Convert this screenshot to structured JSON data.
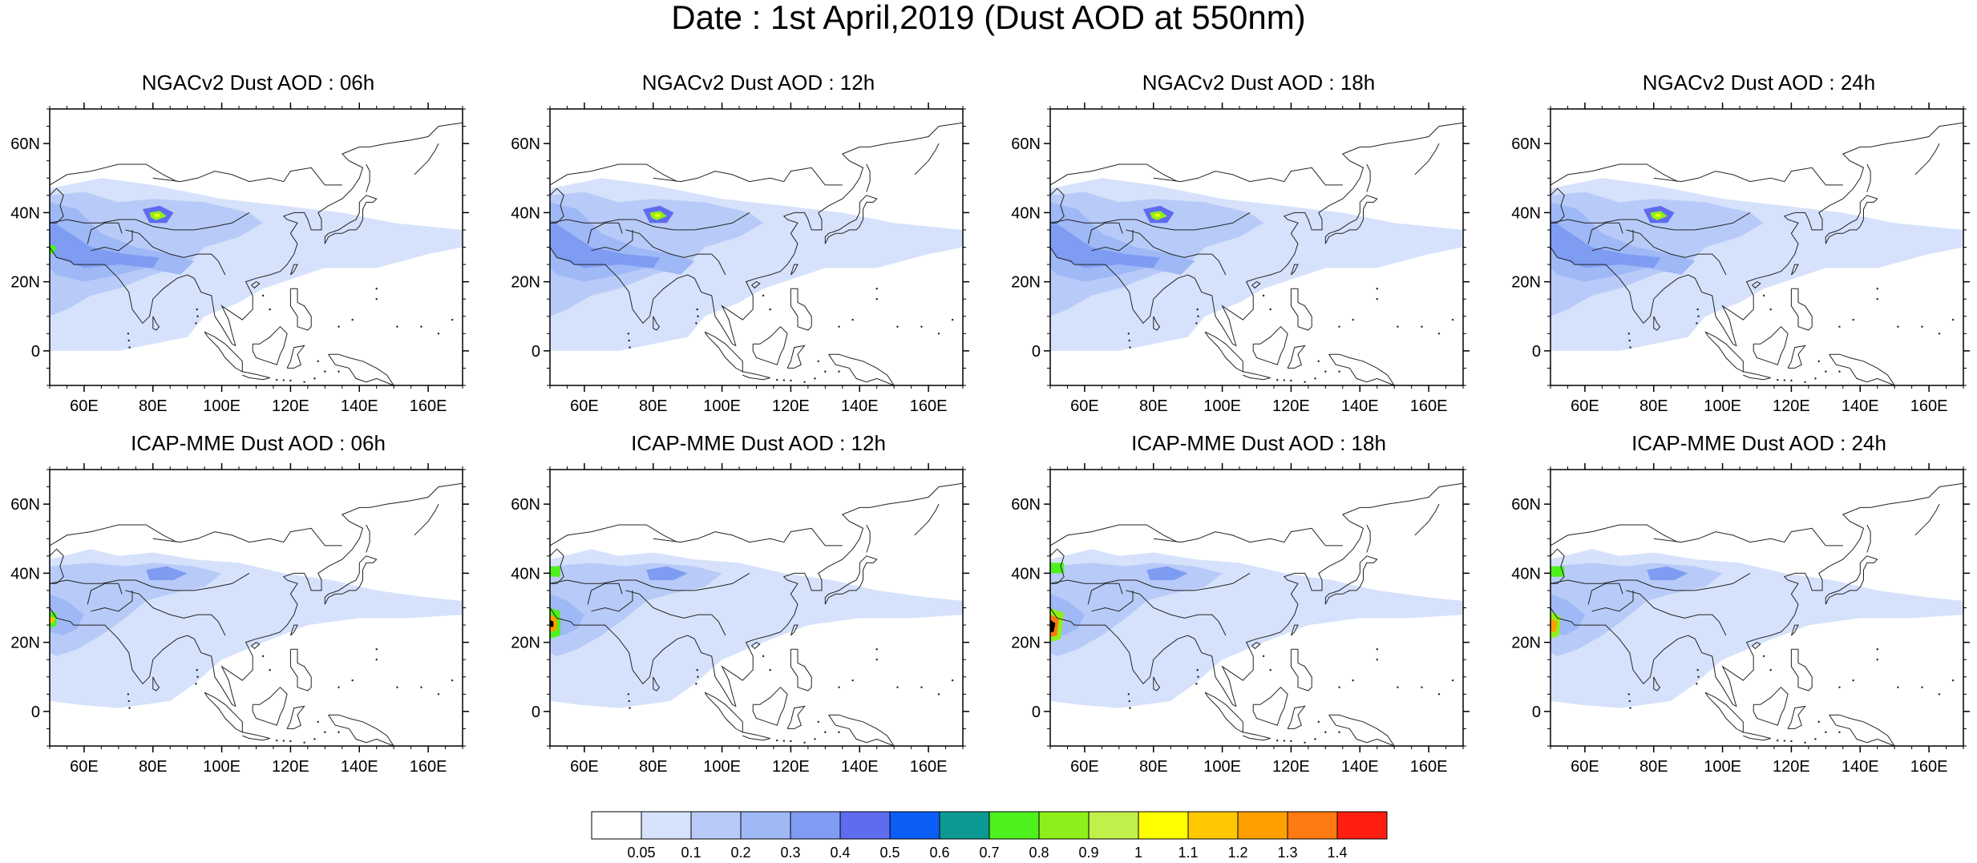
{
  "title": "Date : 1st April,2019 (Dust AOD at 550nm)",
  "axes": {
    "lat_ticks": [
      "60N",
      "40N",
      "20N",
      "0"
    ],
    "lon_ticks": [
      "60E",
      "80E",
      "100E",
      "120E",
      "140E",
      "160E"
    ]
  },
  "panels": [
    {
      "title": "NGACv2 Dust AOD : 06h",
      "model": "NGACv2",
      "hour": "06h"
    },
    {
      "title": "NGACv2 Dust AOD : 12h",
      "model": "NGACv2",
      "hour": "12h"
    },
    {
      "title": "NGACv2 Dust AOD : 18h",
      "model": "NGACv2",
      "hour": "18h"
    },
    {
      "title": "NGACv2 Dust AOD : 24h",
      "model": "NGACv2",
      "hour": "24h"
    },
    {
      "title": "ICAP-MME Dust AOD : 06h",
      "model": "ICAP-MME",
      "hour": "06h"
    },
    {
      "title": "ICAP-MME Dust AOD : 12h",
      "model": "ICAP-MME",
      "hour": "12h"
    },
    {
      "title": "ICAP-MME Dust AOD : 18h",
      "model": "ICAP-MME",
      "hour": "18h"
    },
    {
      "title": "ICAP-MME Dust AOD : 24h",
      "model": "ICAP-MME",
      "hour": "24h"
    }
  ],
  "colorbar": {
    "labels": [
      "0.05",
      "0.1",
      "0.2",
      "0.3",
      "0.4",
      "0.5",
      "0.6",
      "0.7",
      "0.8",
      "0.9",
      "1",
      "1.1",
      "1.2",
      "1.3",
      "1.4"
    ],
    "colors": [
      "#ffffff",
      "#d6e2fb",
      "#b8cbf8",
      "#9fb8f6",
      "#7f9cf3",
      "#5f6cf0",
      "#0a5df5",
      "#0a9a93",
      "#4ef01e",
      "#8ef01a",
      "#c0f04a",
      "#ffff00",
      "#ffc800",
      "#ffa000",
      "#ff7a10",
      "#ff1e10"
    ]
  }
}
